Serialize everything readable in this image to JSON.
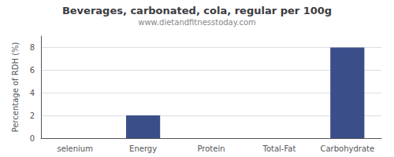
{
  "chart_data": {
    "type": "bar",
    "title": "Beverages, carbonated, cola, regular per 100g",
    "subtitle": "www.dietandfitnesstoday.com",
    "categories": [
      "selenium",
      "Energy",
      "Protein",
      "Total-Fat",
      "Carbohydrate"
    ],
    "values": [
      0,
      2,
      0,
      0,
      8
    ],
    "color": "#3a4f8a",
    "ylabel": "Percentage of RDH (%)",
    "ylim": [
      0,
      9
    ],
    "yticks": [
      0,
      2,
      4,
      6,
      8
    ],
    "grid": true
  }
}
